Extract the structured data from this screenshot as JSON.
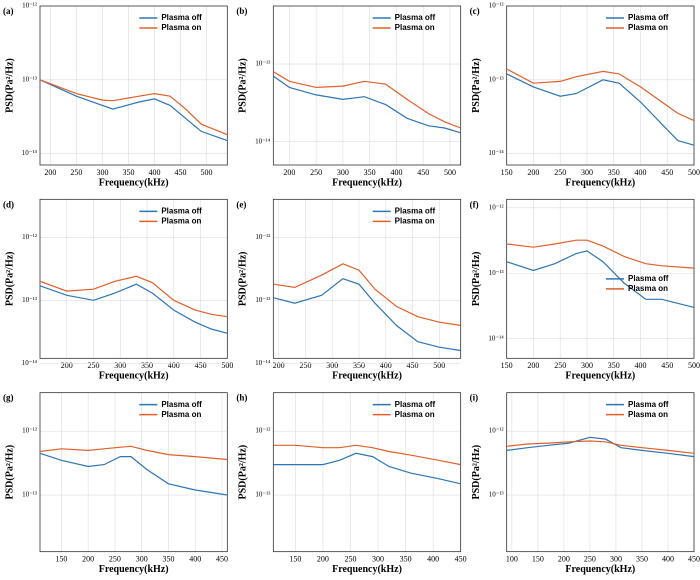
{
  "chart_data": [
    {
      "type": "line",
      "label": "(a)",
      "xlabel": "Frequency(kHz)",
      "ylabel": "PSD(Pa²/Hz)",
      "log_y": true,
      "grid": true,
      "legend": "upper right",
      "x": [
        180,
        250,
        300,
        320,
        370,
        400,
        430,
        460,
        490,
        540
      ],
      "xlim": [
        180,
        540
      ],
      "xticks": [
        200,
        250,
        300,
        350,
        400,
        450,
        500
      ],
      "ylim": [
        7e-15,
        1e-12
      ],
      "yticks": [
        {
          "value": 1e-14,
          "label": "10⁻¹⁴"
        },
        {
          "value": 1e-13,
          "label": "10⁻¹³"
        },
        {
          "value": 1e-12,
          "label": "10⁻¹²"
        }
      ],
      "series": [
        {
          "name": "Plasma off",
          "color": "#2e75b6",
          "values": [
            1e-13,
            6e-14,
            4.5e-14,
            4e-14,
            5e-14,
            5.5e-14,
            4.5e-14,
            3e-14,
            2e-14,
            1.5e-14
          ]
        },
        {
          "name": "Plasma on",
          "color": "#e0602a",
          "values": [
            1e-13,
            6.5e-14,
            5.3e-14,
            5.2e-14,
            6e-14,
            6.5e-14,
            6e-14,
            4e-14,
            2.5e-14,
            1.8e-14
          ]
        }
      ]
    },
    {
      "type": "line",
      "label": "(b)",
      "xlabel": "Frequency(kHz)",
      "ylabel": "PSD(Pa²/Hz)",
      "log_y": true,
      "grid": true,
      "legend": "upper right",
      "x": [
        170,
        200,
        250,
        300,
        340,
        380,
        420,
        460,
        490,
        520
      ],
      "xlim": [
        170,
        520
      ],
      "xticks": [
        200,
        250,
        300,
        350,
        400,
        450,
        500
      ],
      "ylim": [
        5e-15,
        5.6e-13
      ],
      "yticks": [
        {
          "value": 1e-14,
          "label": "10⁻¹⁴"
        },
        {
          "value": 1e-13,
          "label": "10⁻¹³"
        }
      ],
      "series": [
        {
          "name": "Plasma off",
          "color": "#2e75b6",
          "values": [
            7e-14,
            5e-14,
            4e-14,
            3.5e-14,
            3.8e-14,
            3e-14,
            2e-14,
            1.6e-14,
            1.5e-14,
            1.3e-14
          ]
        },
        {
          "name": "Plasma on",
          "color": "#e0602a",
          "values": [
            8e-14,
            6e-14,
            5e-14,
            5.2e-14,
            6e-14,
            5.5e-14,
            3.5e-14,
            2.3e-14,
            1.8e-14,
            1.5e-14
          ]
        }
      ]
    },
    {
      "type": "line",
      "label": "(c)",
      "xlabel": "Frequency(kHz)",
      "ylabel": "PSD(Pa²/Hz)",
      "log_y": true,
      "grid": true,
      "legend": "upper right",
      "x": [
        150,
        200,
        250,
        280,
        330,
        360,
        400,
        440,
        470,
        500
      ],
      "xlim": [
        150,
        500
      ],
      "xticks": [
        150,
        200,
        250,
        300,
        350,
        400,
        450,
        500
      ],
      "ylim": [
        7e-15,
        1e-12
      ],
      "yticks": [
        {
          "value": 1e-14,
          "label": "10⁻¹⁴"
        },
        {
          "value": 1e-13,
          "label": "10⁻¹³"
        },
        {
          "value": 1e-12,
          "label": "10⁻¹²"
        }
      ],
      "series": [
        {
          "name": "Plasma off",
          "color": "#2e75b6",
          "values": [
            1.2e-13,
            8e-14,
            6e-14,
            6.5e-14,
            1e-13,
            9e-14,
            5e-14,
            2.5e-14,
            1.5e-14,
            1.3e-14
          ]
        },
        {
          "name": "Plasma on",
          "color": "#e0602a",
          "values": [
            1.4e-13,
            9e-14,
            9.5e-14,
            1.1e-13,
            1.3e-13,
            1.2e-13,
            8e-14,
            5e-14,
            3.5e-14,
            2.8e-14
          ]
        }
      ]
    },
    {
      "type": "line",
      "label": "(d)",
      "xlabel": "Frequency(kHz)",
      "ylabel": "PSD(Pa²/Hz)",
      "log_y": true,
      "grid": true,
      "legend": "upper right",
      "x": [
        150,
        200,
        250,
        290,
        330,
        360,
        400,
        440,
        470,
        500
      ],
      "xlim": [
        150,
        500
      ],
      "xticks": [
        200,
        250,
        300,
        350,
        400,
        450,
        500
      ],
      "ylim": [
        1.2e-14,
        4e-12
      ],
      "yticks": [
        {
          "value": 1e-14,
          "label": "10⁻¹⁴"
        },
        {
          "value": 1e-13,
          "label": "10⁻¹³"
        },
        {
          "value": 1e-12,
          "label": "10⁻¹²"
        }
      ],
      "series": [
        {
          "name": "Plasma off",
          "color": "#2e75b6",
          "values": [
            1.7e-13,
            1.2e-13,
            1e-13,
            1.3e-13,
            1.8e-13,
            1.3e-13,
            7e-14,
            4.5e-14,
            3.5e-14,
            3e-14
          ]
        },
        {
          "name": "Plasma on",
          "color": "#e0602a",
          "values": [
            2e-13,
            1.4e-13,
            1.5e-13,
            2e-13,
            2.4e-13,
            1.9e-13,
            1e-13,
            7e-14,
            6e-14,
            5.5e-14
          ]
        }
      ]
    },
    {
      "type": "line",
      "label": "(e)",
      "xlabel": "Frequency(kHz)",
      "ylabel": "PSD(Pa²/Hz)",
      "log_y": true,
      "grid": true,
      "legend": "upper right",
      "x": [
        190,
        230,
        280,
        320,
        350,
        380,
        420,
        460,
        500,
        540
      ],
      "xlim": [
        190,
        540
      ],
      "xticks": [
        200,
        250,
        300,
        350,
        400,
        450,
        500
      ],
      "ylim": [
        1.2e-14,
        4e-12
      ],
      "yticks": [
        {
          "value": 1e-14,
          "label": "10⁻¹⁴"
        },
        {
          "value": 1e-13,
          "label": "10⁻¹³"
        },
        {
          "value": 1e-12,
          "label": "10⁻¹²"
        }
      ],
      "series": [
        {
          "name": "Plasma off",
          "color": "#2e75b6",
          "values": [
            1.1e-13,
            9e-14,
            1.2e-13,
            2.2e-13,
            1.8e-13,
            9e-14,
            4e-14,
            2.2e-14,
            1.8e-14,
            1.6e-14
          ]
        },
        {
          "name": "Plasma on",
          "color": "#e0602a",
          "values": [
            1.8e-13,
            1.6e-13,
            2.5e-13,
            3.8e-13,
            3e-13,
            1.5e-13,
            8e-14,
            5.5e-14,
            4.5e-14,
            4e-14
          ]
        }
      ]
    },
    {
      "type": "line",
      "label": "(f)",
      "xlabel": "Frequency(kHz)",
      "ylabel": "PSD(Pa²/Hz)",
      "log_y": true,
      "grid": true,
      "legend": "center right",
      "x": [
        150,
        200,
        240,
        280,
        300,
        330,
        370,
        410,
        440,
        500
      ],
      "xlim": [
        150,
        500
      ],
      "xticks": [
        150,
        200,
        250,
        300,
        350,
        400,
        450,
        500
      ],
      "ylim": [
        5e-15,
        1.35e-12
      ],
      "yticks": [
        {
          "value": 1e-14,
          "label": "10⁻¹⁴"
        },
        {
          "value": 1e-13,
          "label": "10⁻¹³"
        },
        {
          "value": 1e-12,
          "label": "10⁻¹²"
        }
      ],
      "series": [
        {
          "name": "Plasma off",
          "color": "#2e75b6",
          "values": [
            1.5e-13,
            1.1e-13,
            1.4e-13,
            2e-13,
            2.2e-13,
            1.5e-13,
            7e-14,
            4e-14,
            4e-14,
            3e-14
          ]
        },
        {
          "name": "Plasma on",
          "color": "#e0602a",
          "values": [
            2.8e-13,
            2.5e-13,
            2.8e-13,
            3.2e-13,
            3.2e-13,
            2.6e-13,
            1.8e-13,
            1.4e-13,
            1.3e-13,
            1.2e-13
          ]
        }
      ]
    },
    {
      "type": "line",
      "label": "(g)",
      "xlabel": "Frequency(kHz)",
      "ylabel": "PSD(Pa²/Hz)",
      "log_y": true,
      "grid": true,
      "legend": "upper right",
      "x": [
        110,
        150,
        200,
        230,
        260,
        280,
        310,
        350,
        400,
        460
      ],
      "xlim": [
        110,
        460
      ],
      "xticks": [
        150,
        200,
        250,
        300,
        350,
        400,
        450
      ],
      "ylim": [
        1.3e-14,
        4e-12
      ],
      "yticks": [
        {
          "value": 1e-13,
          "label": "10⁻¹³"
        },
        {
          "value": 1e-12,
          "label": "10⁻¹²"
        }
      ],
      "series": [
        {
          "name": "Plasma off",
          "color": "#2e75b6",
          "values": [
            4.5e-13,
            3.5e-13,
            2.8e-13,
            3e-13,
            4e-13,
            4e-13,
            2.5e-13,
            1.5e-13,
            1.2e-13,
            1e-13
          ]
        },
        {
          "name": "Plasma on",
          "color": "#e0602a",
          "values": [
            4.8e-13,
            5.3e-13,
            5e-13,
            5.3e-13,
            5.6e-13,
            5.8e-13,
            5e-13,
            4.3e-13,
            4e-13,
            3.6e-13
          ]
        }
      ]
    },
    {
      "type": "line",
      "label": "(h)",
      "xlabel": "Frequency(kHz)",
      "ylabel": "PSD(Pa²/Hz)",
      "log_y": true,
      "grid": true,
      "legend": "upper right",
      "x": [
        110,
        150,
        200,
        230,
        260,
        290,
        320,
        360,
        410,
        450
      ],
      "xlim": [
        110,
        450
      ],
      "xticks": [
        150,
        200,
        250,
        300,
        350,
        400,
        450
      ],
      "ylim": [
        1.3e-14,
        4e-12
      ],
      "yticks": [
        {
          "value": 1e-13,
          "label": "10⁻¹³"
        },
        {
          "value": 1e-12,
          "label": "10⁻¹²"
        }
      ],
      "series": [
        {
          "name": "Plasma off",
          "color": "#2e75b6",
          "values": [
            3e-13,
            3e-13,
            3e-13,
            3.5e-13,
            4.5e-13,
            4e-13,
            2.8e-13,
            2.2e-13,
            1.8e-13,
            1.5e-13
          ]
        },
        {
          "name": "Plasma on",
          "color": "#e0602a",
          "values": [
            6e-13,
            6e-13,
            5.5e-13,
            5.5e-13,
            6e-13,
            5.5e-13,
            4.8e-13,
            4.2e-13,
            3.5e-13,
            3e-13
          ]
        }
      ]
    },
    {
      "type": "line",
      "label": "(i)",
      "xlabel": "Frequency(kHz)",
      "ylabel": "PSD(Pa²/Hz)",
      "log_y": true,
      "grid": true,
      "legend": "upper right",
      "x": [
        90,
        130,
        170,
        210,
        250,
        280,
        310,
        350,
        400,
        450
      ],
      "xlim": [
        90,
        450
      ],
      "xticks": [
        100,
        150,
        200,
        250,
        300,
        350,
        400,
        450
      ],
      "ylim": [
        1.3e-14,
        4e-12
      ],
      "yticks": [
        {
          "value": 1e-13,
          "label": "10⁻¹³"
        },
        {
          "value": 1e-12,
          "label": "10⁻¹²"
        }
      ],
      "series": [
        {
          "name": "Plasma off",
          "color": "#2e75b6",
          "values": [
            5e-13,
            5.5e-13,
            6e-13,
            6.5e-13,
            8e-13,
            7.5e-13,
            5.5e-13,
            5e-13,
            4.5e-13,
            4e-13
          ]
        },
        {
          "name": "Plasma on",
          "color": "#e0602a",
          "values": [
            5.8e-13,
            6.3e-13,
            6.5e-13,
            6.8e-13,
            7e-13,
            6.8e-13,
            6e-13,
            5.5e-13,
            5e-13,
            4.5e-13
          ]
        }
      ]
    }
  ]
}
